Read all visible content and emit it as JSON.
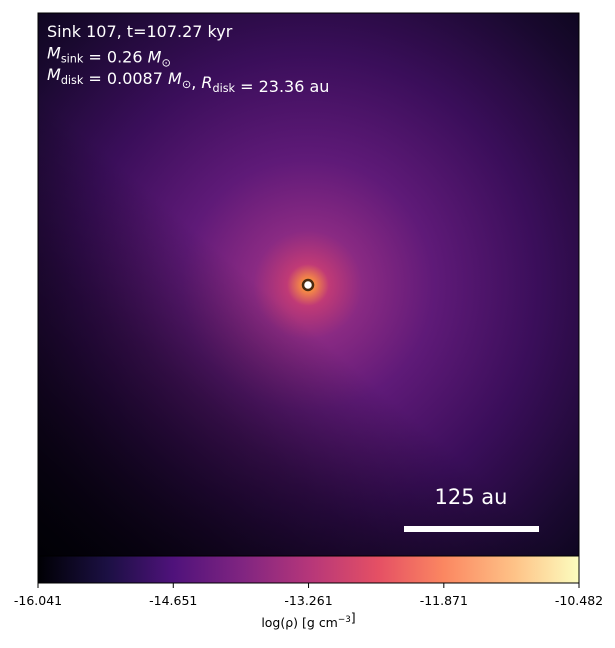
{
  "chart_data": {
    "type": "image",
    "annotations": [
      [
        {
          "text": "Sink 107, t=107.27 kyr"
        }
      ],
      [
        {
          "text": "M",
          "italic": true
        },
        {
          "sub": "sink"
        },
        {
          "text": " = 0.26 "
        },
        {
          "text": "M",
          "italic": true
        },
        {
          "sub": "⊙"
        }
      ],
      [
        {
          "text": "M",
          "italic": true
        },
        {
          "sub": "disk"
        },
        {
          "text": " = 0.0087 "
        },
        {
          "text": "M",
          "italic": true
        },
        {
          "sub": "⊙"
        },
        {
          "text": ", "
        },
        {
          "text": "R",
          "italic": true
        },
        {
          "sub": "disk"
        },
        {
          "text": " = 23.36 au"
        }
      ]
    ],
    "scale_bar": "125 au",
    "colorbar": {
      "colormap": "magma",
      "clim": [
        -16.041,
        -10.482
      ],
      "ticks": [
        -16.041,
        -14.651,
        -13.261,
        -11.871,
        -10.482
      ],
      "label": [
        {
          "text": "log(ρ) [g cm"
        },
        {
          "sup": "−3"
        },
        {
          "text": "]"
        }
      ]
    }
  }
}
